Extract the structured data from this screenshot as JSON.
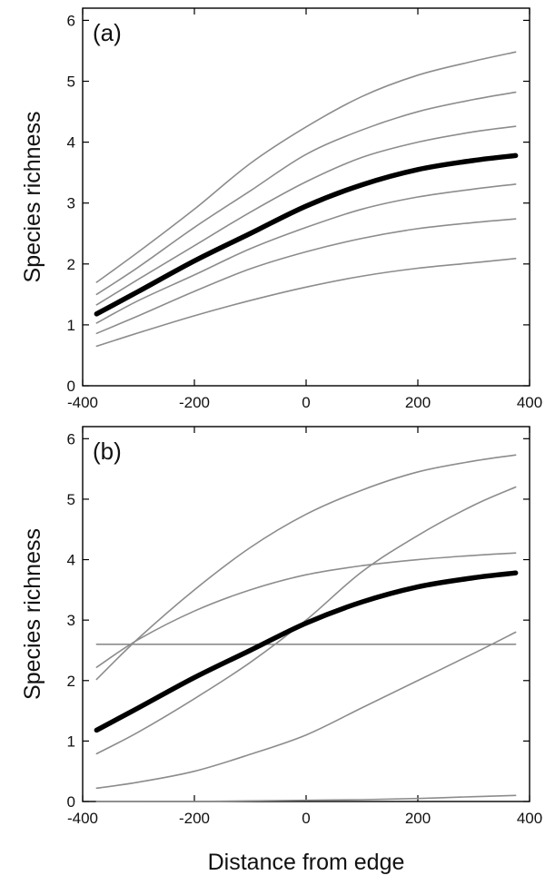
{
  "chart_data": [
    {
      "type": "line",
      "panel_label": "(a)",
      "ylabel": "Species richness",
      "xlim": [
        -400,
        400
      ],
      "ylim": [
        0,
        6.2
      ],
      "xticks": [
        "-400",
        "-200",
        "0",
        "200",
        "400"
      ],
      "yticks": [
        "0",
        "1",
        "2",
        "3",
        "4",
        "5",
        "6"
      ],
      "x": [
        -375,
        -300,
        -200,
        -100,
        0,
        100,
        200,
        300,
        375
      ],
      "series": [
        {
          "color": "#8c8c8c",
          "width": 1.6,
          "values": [
            1.7,
            2.2,
            2.9,
            3.65,
            4.25,
            4.75,
            5.1,
            5.33,
            5.48
          ]
        },
        {
          "color": "#8c8c8c",
          "width": 1.6,
          "values": [
            1.5,
            1.95,
            2.6,
            3.2,
            3.8,
            4.2,
            4.5,
            4.7,
            4.82
          ]
        },
        {
          "color": "#8c8c8c",
          "width": 1.6,
          "values": [
            1.33,
            1.75,
            2.3,
            2.85,
            3.35,
            3.75,
            4.0,
            4.17,
            4.26
          ]
        },
        {
          "color": "#000000",
          "width": 5.5,
          "values": [
            1.18,
            1.55,
            2.05,
            2.5,
            2.95,
            3.3,
            3.55,
            3.7,
            3.78
          ]
        },
        {
          "color": "#8c8c8c",
          "width": 1.6,
          "values": [
            1.03,
            1.4,
            1.82,
            2.25,
            2.6,
            2.9,
            3.1,
            3.23,
            3.31
          ]
        },
        {
          "color": "#8c8c8c",
          "width": 1.6,
          "values": [
            0.86,
            1.15,
            1.55,
            1.92,
            2.2,
            2.42,
            2.58,
            2.68,
            2.74
          ]
        },
        {
          "color": "#8c8c8c",
          "width": 1.6,
          "values": [
            0.65,
            0.87,
            1.15,
            1.4,
            1.62,
            1.8,
            1.93,
            2.02,
            2.09
          ]
        }
      ]
    },
    {
      "type": "line",
      "panel_label": "(b)",
      "ylabel": "Species richness",
      "xlabel": "Distance from edge",
      "xlim": [
        -400,
        400
      ],
      "ylim": [
        0,
        6.2
      ],
      "xticks": [
        "-400",
        "-200",
        "0",
        "200",
        "400"
      ],
      "yticks": [
        "0",
        "1",
        "2",
        "3",
        "4",
        "5",
        "6"
      ],
      "x": [
        -375,
        -300,
        -200,
        -100,
        0,
        100,
        200,
        300,
        375
      ],
      "series": [
        {
          "color": "#8c8c8c",
          "width": 1.6,
          "values": [
            2.02,
            2.7,
            3.5,
            4.2,
            4.75,
            5.15,
            5.45,
            5.63,
            5.73
          ]
        },
        {
          "color": "#8c8c8c",
          "width": 1.6,
          "values": [
            0.79,
            1.15,
            1.7,
            2.3,
            3.0,
            3.8,
            4.4,
            4.9,
            5.2
          ]
        },
        {
          "color": "#8c8c8c",
          "width": 1.6,
          "values": [
            2.22,
            2.68,
            3.15,
            3.5,
            3.75,
            3.9,
            4.0,
            4.07,
            4.11
          ]
        },
        {
          "color": "#000000",
          "width": 5.5,
          "values": [
            1.18,
            1.55,
            2.05,
            2.5,
            2.95,
            3.3,
            3.55,
            3.7,
            3.78
          ]
        },
        {
          "color": "#8c8c8c",
          "width": 1.6,
          "values": [
            2.6,
            2.6,
            2.6,
            2.6,
            2.6,
            2.6,
            2.6,
            2.6,
            2.6
          ]
        },
        {
          "color": "#8c8c8c",
          "width": 1.6,
          "values": [
            0.22,
            0.32,
            0.5,
            0.78,
            1.1,
            1.55,
            2.0,
            2.45,
            2.8
          ]
        },
        {
          "color": "#8c8c8c",
          "width": 1.6,
          "values": [
            0.0,
            0.0,
            0.0,
            0.01,
            0.02,
            0.03,
            0.05,
            0.08,
            0.1
          ]
        }
      ]
    }
  ]
}
